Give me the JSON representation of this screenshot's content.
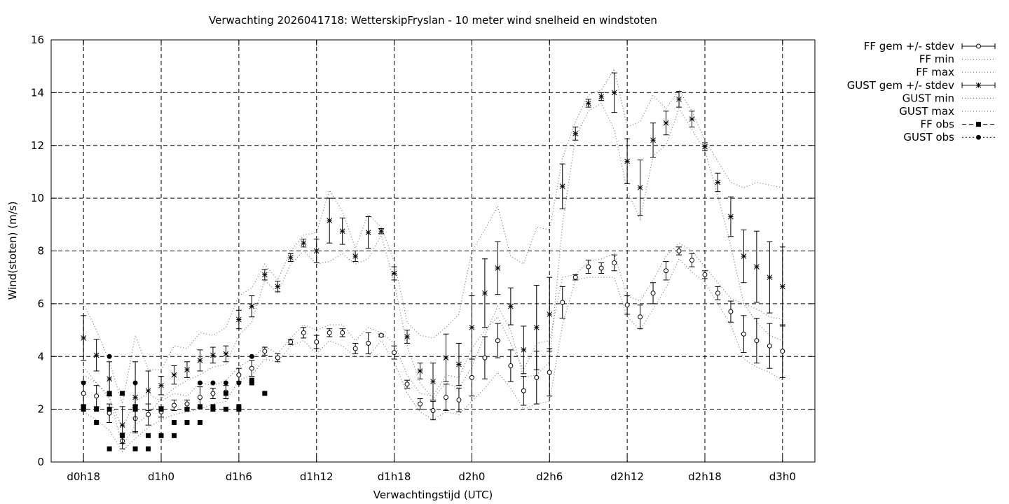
{
  "chart_data": {
    "type": "scatter",
    "title": "Verwachting 2026041718: WetterskipFryslan - 10 meter wind snelheid en windstoten",
    "xlabel": "Verwachtingstijd (UTC)",
    "ylabel": "Wind(stoten) (m/s)",
    "x_unit": "hours since d0h18",
    "xlim": [
      -2.5,
      56.5
    ],
    "ylim": [
      0,
      16
    ],
    "grid": true,
    "legend_position": "outside-top-right",
    "x_ticks": [
      {
        "x": 0,
        "label": "d0h18"
      },
      {
        "x": 6,
        "label": "d1h0"
      },
      {
        "x": 12,
        "label": "d1h6"
      },
      {
        "x": 18,
        "label": "d1h12"
      },
      {
        "x": 24,
        "label": "d1h18"
      },
      {
        "x": 30,
        "label": "d2h0"
      },
      {
        "x": 36,
        "label": "d2h6"
      },
      {
        "x": 42,
        "label": "d2h12"
      },
      {
        "x": 48,
        "label": "d2h18"
      },
      {
        "x": 54,
        "label": "d3h0"
      }
    ],
    "y_ticks": [
      0,
      2,
      4,
      6,
      8,
      10,
      12,
      14,
      16
    ],
    "legend": [
      "FF gem +/- stdev",
      "FF min",
      "FF max",
      "GUST gem +/- stdev",
      "GUST min",
      "GUST max",
      "FF obs",
      "GUST obs"
    ],
    "ff_mean": {
      "x": [
        0,
        1,
        2,
        3,
        4,
        5,
        6,
        7,
        8,
        9,
        10,
        11,
        12,
        13,
        14,
        15,
        16,
        17,
        18,
        19,
        20,
        21,
        22,
        23,
        24,
        25,
        26,
        27,
        28,
        29,
        30,
        31,
        32,
        33,
        34,
        35,
        36,
        37,
        38,
        39,
        40,
        41,
        42,
        43,
        44,
        45,
        46,
        47,
        48,
        49,
        50,
        51,
        52,
        53,
        54
      ],
      "mean": [
        2.6,
        2.5,
        1.85,
        0.8,
        1.65,
        1.8,
        1.9,
        2.15,
        2.2,
        2.45,
        2.6,
        2.65,
        3.3,
        3.55,
        4.2,
        3.95,
        4.55,
        4.9,
        4.55,
        4.9,
        4.9,
        4.3,
        4.5,
        4.8,
        4.15,
        2.95,
        2.2,
        1.95,
        2.45,
        2.35,
        3.2,
        3.95,
        4.6,
        3.65,
        2.7,
        3.2,
        3.4,
        6.05,
        7.0,
        7.4,
        7.35,
        7.55,
        5.95,
        5.5,
        6.4,
        7.25,
        8.0,
        7.65,
        7.1,
        6.4,
        5.7,
        4.85,
        4.6,
        4.4,
        4.2
      ],
      "stdev": [
        0.45,
        0.4,
        0.35,
        0.3,
        0.5,
        0.4,
        0.2,
        0.2,
        0.15,
        0.4,
        0.2,
        0.25,
        0.25,
        0.3,
        0.15,
        0.15,
        0.1,
        0.2,
        0.25,
        0.15,
        0.15,
        0.2,
        0.4,
        0.05,
        0.25,
        0.15,
        0.2,
        0.35,
        0.5,
        0.45,
        0.7,
        0.8,
        0.65,
        0.6,
        0.55,
        1.0,
        0.9,
        0.6,
        0.1,
        0.25,
        0.2,
        0.3,
        0.35,
        0.45,
        0.4,
        0.35,
        0.15,
        0.25,
        0.15,
        0.25,
        0.4,
        0.7,
        0.85,
        0.85,
        1.0
      ]
    },
    "ff_min": [
      1.9,
      1.6,
      1.2,
      0.4,
      0.9,
      1.3,
      1.6,
      1.8,
      1.9,
      2.0,
      2.2,
      2.3,
      3.1,
      3.3,
      3.9,
      3.8,
      4.4,
      4.6,
      4.1,
      4.6,
      4.4,
      4.0,
      4.0,
      4.6,
      3.8,
      2.6,
      1.9,
      1.6,
      1.9,
      1.8,
      2.3,
      2.8,
      3.4,
      2.8,
      2.0,
      2.2,
      2.3,
      5.2,
      6.9,
      7.0,
      7.0,
      7.0,
      5.5,
      5.0,
      5.8,
      6.6,
      7.7,
      7.2,
      6.8,
      6.0,
      5.2,
      3.9,
      3.6,
      3.4,
      3.1
    ],
    "ff_max": [
      3.3,
      3.0,
      2.4,
      1.3,
      2.3,
      2.6,
      2.3,
      2.6,
      2.5,
      3.0,
      2.9,
      3.1,
      3.6,
      3.9,
      4.4,
      4.1,
      4.7,
      5.2,
      5.0,
      5.2,
      5.2,
      4.6,
      5.1,
      4.9,
      4.5,
      3.3,
      2.6,
      2.5,
      3.3,
      3.2,
      4.3,
      5.0,
      5.5,
      4.5,
      3.5,
      4.5,
      4.6,
      7.0,
      7.1,
      7.6,
      7.7,
      7.9,
      6.3,
      6.1,
      6.9,
      7.8,
      8.3,
      8.0,
      7.4,
      6.8,
      6.2,
      6.0,
      5.8,
      5.5,
      5.4
    ],
    "gust_mean": {
      "x": [
        0,
        1,
        2,
        3,
        4,
        5,
        6,
        7,
        8,
        9,
        10,
        11,
        12,
        13,
        14,
        15,
        16,
        17,
        18,
        19,
        20,
        21,
        22,
        23,
        24,
        25,
        26,
        27,
        28,
        29,
        30,
        31,
        32,
        33,
        34,
        35,
        36,
        37,
        38,
        39,
        40,
        41,
        42,
        43,
        44,
        45,
        46,
        47,
        48,
        49,
        50,
        51,
        52,
        53,
        54
      ],
      "mean": [
        4.7,
        4.05,
        3.15,
        1.4,
        2.45,
        2.7,
        2.9,
        3.3,
        3.5,
        3.85,
        4.05,
        4.1,
        5.4,
        5.9,
        7.1,
        6.65,
        7.75,
        8.3,
        8.0,
        9.15,
        8.75,
        7.8,
        8.7,
        8.75,
        7.15,
        4.75,
        3.45,
        3.05,
        3.95,
        3.7,
        5.1,
        6.4,
        7.35,
        5.9,
        4.25,
        5.1,
        5.6,
        10.45,
        12.45,
        13.6,
        13.85,
        14.0,
        11.4,
        10.4,
        12.2,
        12.85,
        13.75,
        13.0,
        11.95,
        10.6,
        9.3,
        7.8,
        7.4,
        7.0,
        6.65
      ],
      "stdev": [
        0.85,
        0.6,
        0.65,
        0.7,
        1.35,
        0.75,
        0.35,
        0.35,
        0.3,
        0.4,
        0.3,
        0.3,
        0.35,
        0.4,
        0.2,
        0.2,
        0.15,
        0.15,
        0.45,
        0.85,
        0.5,
        0.2,
        0.6,
        0.1,
        0.25,
        0.25,
        0.3,
        0.7,
        0.9,
        0.8,
        1.2,
        1.3,
        1.0,
        0.7,
        0.9,
        1.6,
        1.4,
        0.85,
        0.25,
        0.15,
        0.15,
        0.75,
        0.85,
        1.05,
        0.65,
        0.45,
        0.3,
        0.3,
        0.15,
        0.35,
        0.75,
        1.0,
        1.35,
        1.35,
        1.5
      ]
    },
    "gust_min": [
      3.6,
      3.0,
      2.5,
      0.6,
      1.4,
      1.8,
      2.4,
      2.8,
      3.1,
      3.3,
      3.6,
      3.7,
      4.8,
      5.3,
      6.9,
      6.4,
      7.5,
      8.0,
      7.5,
      7.6,
      7.9,
      7.5,
      7.7,
      8.6,
      6.8,
      4.4,
      3.0,
      2.4,
      3.0,
      2.8,
      3.6,
      4.8,
      5.9,
      5.0,
      3.2,
      3.3,
      3.8,
      9.0,
      12.3,
      13.3,
      13.6,
      12.6,
      10.3,
      9.2,
      11.6,
      12.0,
      13.4,
      12.6,
      11.8,
      10.1,
      8.2,
      6.0,
      5.3,
      4.8,
      4.6
    ],
    "gust_max": [
      6.0,
      5.0,
      3.8,
      2.2,
      4.8,
      3.5,
      3.5,
      4.4,
      4.3,
      4.9,
      4.8,
      5.1,
      6.3,
      6.6,
      7.5,
      6.9,
      8.0,
      8.6,
      8.7,
      10.3,
      9.5,
      8.1,
      9.4,
      8.9,
      7.6,
      5.3,
      4.8,
      4.7,
      5.1,
      5.6,
      8.0,
      8.8,
      9.7,
      7.8,
      7.5,
      8.9,
      8.8,
      11.5,
      12.9,
      13.9,
      14.1,
      14.9,
      12.7,
      12.9,
      13.9,
      13.4,
      14.1,
      13.3,
      12.2,
      11.4,
      10.6,
      10.4,
      10.6,
      10.5,
      10.4
    ],
    "ff_obs": {
      "x": [
        0,
        0,
        1,
        1,
        2,
        2,
        2,
        3,
        3,
        4,
        4,
        4,
        5,
        5,
        6,
        6,
        7,
        7,
        8,
        8,
        9,
        9,
        10,
        10,
        11,
        11,
        12,
        12,
        13,
        13,
        14
      ],
      "y": [
        2.1,
        2.0,
        2.0,
        1.5,
        2.6,
        2.0,
        0.5,
        2.6,
        1.0,
        2.1,
        2.0,
        0.5,
        1.0,
        0.5,
        2.0,
        1.0,
        1.5,
        1.0,
        2.0,
        1.5,
        2.1,
        1.5,
        2.1,
        2.0,
        2.6,
        2.0,
        2.1,
        2.0,
        3.1,
        3.0,
        2.6
      ]
    },
    "gust_obs": {
      "x": [
        0,
        2,
        4,
        6,
        8,
        9,
        10,
        11,
        12,
        13
      ],
      "y": [
        3.0,
        4.0,
        3.0,
        2.0,
        2.0,
        3.0,
        3.0,
        3.0,
        3.0,
        4.0
      ]
    }
  }
}
